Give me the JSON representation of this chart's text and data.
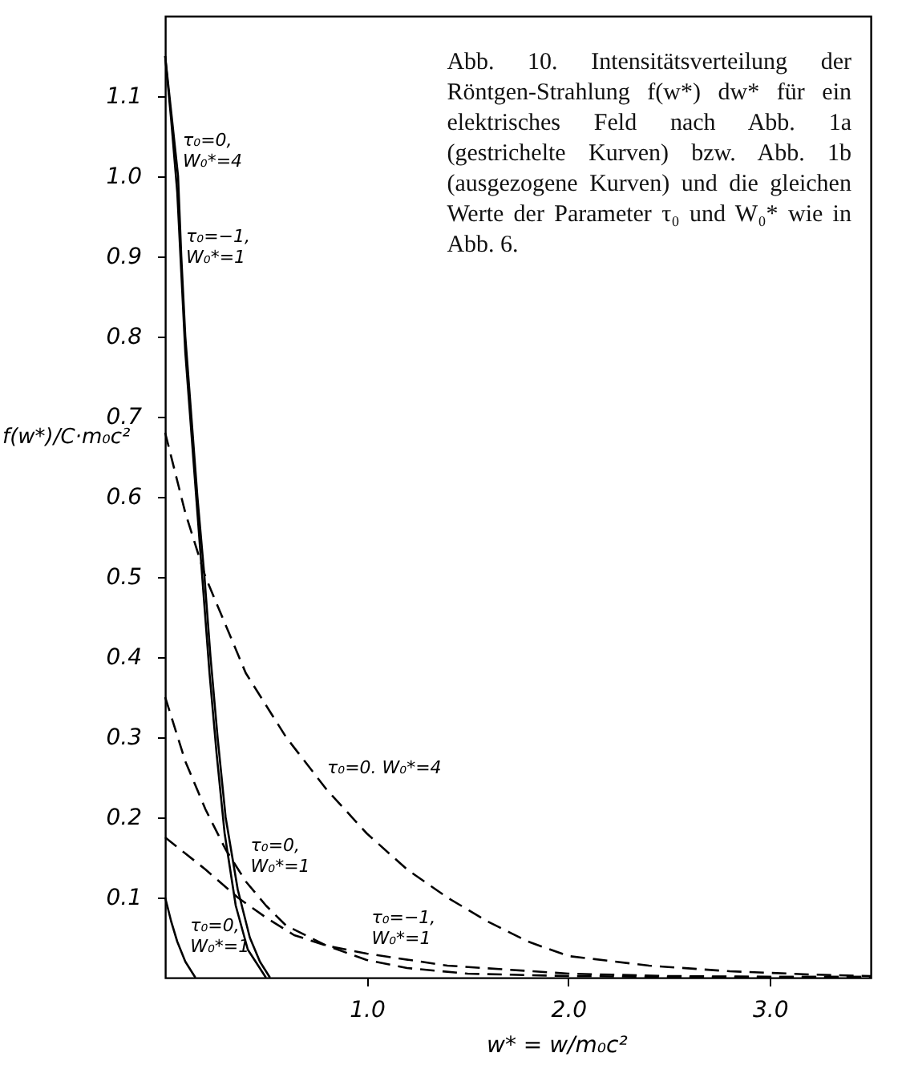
{
  "chart_data": {
    "type": "line",
    "title": "Abb. 10. Intensitätsverteilung der Röntgen-Strahlung f(w*) dw* für ein elektrisches Feld nach Abb. 1a (gestrichelte Kurven) bzw. Abb. 1b (ausgezogene Kurven) und die gleichen Werte der Parameter τ₀ und W₀* wie in Abb. 6.",
    "xlabel": "w* = w/m₀c²",
    "ylabel": "f(w*)/C·m₀c²",
    "xlim": [
      0,
      3.5
    ],
    "ylim": [
      0,
      1.2
    ],
    "xticks": [
      {
        "value": 1,
        "label": "1.0"
      },
      {
        "value": 2,
        "label": "2.0"
      },
      {
        "value": 3,
        "label": "3.0"
      }
    ],
    "yticks": [
      0.1,
      0.2,
      0.3,
      0.4,
      0.5,
      0.6,
      0.7,
      0.8,
      0.9,
      {
        "value": 1,
        "label": "1.0"
      },
      1.1
    ],
    "grid": false,
    "marker": "none",
    "series": [
      {
        "color": "#000000",
        "line_style": "dashed",
        "x": [
          0,
          0.1,
          0.2,
          0.3,
          0.4,
          0.5,
          0.6,
          0.8,
          1.0,
          1.2,
          1.4,
          1.6,
          1.8,
          2.0,
          2.4,
          2.8,
          3.2,
          3.5
        ],
        "values": [
          0.68,
          0.58,
          0.5,
          0.44,
          0.38,
          0.34,
          0.3,
          0.235,
          0.18,
          0.135,
          0.1,
          0.07,
          0.045,
          0.027,
          0.015,
          0.008,
          0.004,
          0.002
        ]
      },
      {
        "color": "#000000",
        "line_style": "dashed",
        "x": [
          0,
          0.1,
          0.2,
          0.3,
          0.4,
          0.5,
          0.6,
          0.8,
          1.0,
          1.2,
          1.5,
          2.0,
          2.5,
          3.0,
          3.5
        ],
        "values": [
          0.35,
          0.27,
          0.21,
          0.16,
          0.12,
          0.09,
          0.065,
          0.04,
          0.022,
          0.012,
          0.005,
          0.002,
          0.001,
          0.001,
          0.001
        ]
      },
      {
        "color": "#000000",
        "line_style": "dashed",
        "x": [
          0,
          0.1,
          0.2,
          0.36,
          0.5,
          0.64,
          0.8,
          1.0,
          1.4,
          2.0,
          2.5,
          3.0,
          3.5
        ],
        "values": [
          0.175,
          0.155,
          0.135,
          0.1,
          0.075,
          0.053,
          0.04,
          0.03,
          0.015,
          0.005,
          0.002,
          0.001,
          0.001
        ]
      },
      {
        "color": "#000000",
        "line_style": "solid",
        "x": [
          0,
          0.03,
          0.064,
          0.08,
          0.1,
          0.13,
          0.16,
          0.195,
          0.225,
          0.26,
          0.3,
          0.36,
          0.42,
          0.47,
          0.52
        ],
        "values": [
          1.15,
          1.08,
          1.0,
          0.9,
          0.8,
          0.7,
          0.6,
          0.5,
          0.4,
          0.3,
          0.2,
          0.11,
          0.05,
          0.02,
          0
        ]
      },
      {
        "color": "#000000",
        "line_style": "solid",
        "x": [
          0,
          0.03,
          0.06,
          0.08,
          0.1,
          0.13,
          0.16,
          0.19,
          0.22,
          0.255,
          0.295,
          0.35,
          0.41,
          0.5
        ],
        "values": [
          1.15,
          1.07,
          0.98,
          0.88,
          0.78,
          0.68,
          0.58,
          0.48,
          0.38,
          0.28,
          0.18,
          0.09,
          0.035,
          0
        ]
      },
      {
        "color": "#000000",
        "line_style": "solid",
        "x": [
          0,
          0.03,
          0.06,
          0.1,
          0.15
        ],
        "values": [
          0.1,
          0.07,
          0.045,
          0.02,
          0
        ]
      }
    ],
    "annotations": [
      {
        "text": "τ₀=0,\nW₀*=4",
        "x": 0.064,
        "y": 1.0
      },
      {
        "text": "τ₀=−1,\nW₀*=1",
        "x": 0.08,
        "y": 0.88
      },
      {
        "text": "τ₀=0.  W₀*=4",
        "x": 0.78,
        "y": 0.243
      },
      {
        "text": "τ₀=0,\nW₀*=1",
        "x": 0.4,
        "y": 0.12
      },
      {
        "text": "τ₀=−1,\nW₀*=1",
        "x": 1.0,
        "y": 0.03
      },
      {
        "text": "τ₀=0,\nW₀*=1",
        "x": 0.1,
        "y": 0.02
      }
    ]
  }
}
